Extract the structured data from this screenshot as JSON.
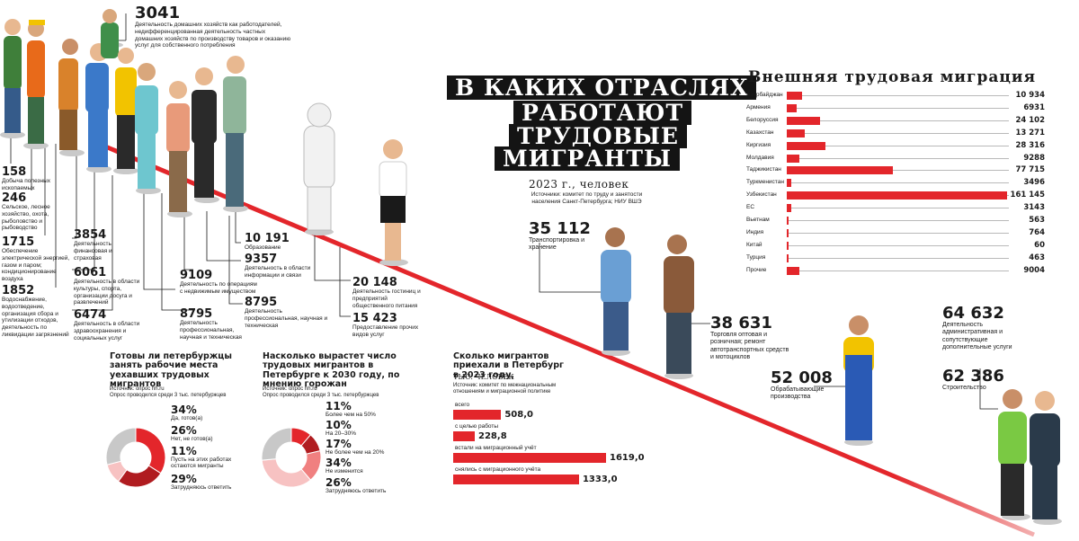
{
  "main": {
    "title_lines": [
      "В каких отраслях",
      "работают",
      "трудовые",
      "мигранты"
    ],
    "subtitle": "2023 г., человек",
    "source": "Источники: комитет по труду и занятости населения Санкт-Петербурга; НИУ ВШЭ"
  },
  "colors": {
    "accent": "#e3262b",
    "dark": "#141414",
    "donut_dark": "#e3262b",
    "donut_mid": "#f08080",
    "donut_light": "#f7c2c2",
    "donut_gray": "#c8c8c8"
  },
  "sectors": [
    {
      "value": "3041",
      "label": "Деятельность домашних хозяйств как работодателей, недифференцированная деятельность частных домашних хозяйств по производству товаров и оказанию услуг для собственного потребления"
    },
    {
      "value": "158",
      "label": "Добыча полезных ископаемых"
    },
    {
      "value": "246",
      "label": "Сельское, лесное хозяйство, охота, рыболовство и рыбоводство"
    },
    {
      "value": "1715",
      "label": "Обеспечение электрической энергией, газом и паром; кондиционирование воздуха"
    },
    {
      "value": "1852",
      "label": "Водоснабжение, водоотведение, организация сбора и утилизации отходов, деятельность по ликвидации загрязнений"
    },
    {
      "value": "3854",
      "label": "Деятельность финансовая и страховая"
    },
    {
      "value": "6061",
      "label": "Деятельность в области культуры, спорта, организации досуга и развлечений"
    },
    {
      "value": "6474",
      "label": "Деятельность в области здравоохранения и социальных услуг"
    },
    {
      "value": "10 191",
      "label": "Образование"
    },
    {
      "value": "9357",
      "label": "Деятельность в области информации и связи"
    },
    {
      "value": "9109",
      "label": "Деятельность по операциям с недвижимым имуществом"
    },
    {
      "value": "8795",
      "label": "Деятельность профессиональная, научная и техническая"
    },
    {
      "value": "8795",
      "label": "Деятельность профессиональная, научная и техническая"
    },
    {
      "value": "20 148",
      "label": "Деятельность гостиниц и предприятий общественного питания"
    },
    {
      "value": "15 423",
      "label": "Предоставление прочих видов услуг"
    },
    {
      "value": "35 112",
      "label": "Транспортировка и хранение"
    },
    {
      "value": "38 631",
      "label": "Торговля оптовая и розничная; ремонт автотранспортных средств и мотоциклов"
    },
    {
      "value": "52 008",
      "label": "Обрабатывающие производства"
    },
    {
      "value": "64 632",
      "label": "Деятельность административная и сопутствующие дополнительные услуги"
    },
    {
      "value": "62 386",
      "label": "Строительство"
    }
  ],
  "migration": {
    "title": "Внешняя трудовая миграция",
    "rows": [
      {
        "country": "Азербайджан",
        "value": "10 934",
        "num": 10934
      },
      {
        "country": "Армения",
        "value": "6931",
        "num": 6931
      },
      {
        "country": "Белоруссия",
        "value": "24 102",
        "num": 24102
      },
      {
        "country": "Казахстан",
        "value": "13 271",
        "num": 13271
      },
      {
        "country": "Киргизия",
        "value": "28 316",
        "num": 28316
      },
      {
        "country": "Молдавия",
        "value": "9288",
        "num": 9288
      },
      {
        "country": "Таджикистан",
        "value": "77 715",
        "num": 77715
      },
      {
        "country": "Туркменистан",
        "value": "3496",
        "num": 3496
      },
      {
        "country": "Узбекистан",
        "value": "161 145",
        "num": 161145
      },
      {
        "country": "ЕС",
        "value": "3143",
        "num": 3143
      },
      {
        "country": "Вьетнам",
        "value": "563",
        "num": 563
      },
      {
        "country": "Индия",
        "value": "764",
        "num": 764
      },
      {
        "country": "Китай",
        "value": "60",
        "num": 60
      },
      {
        "country": "Турция",
        "value": "463",
        "num": 463
      },
      {
        "country": "Прочие",
        "value": "9004",
        "num": 9004
      }
    ]
  },
  "poll1": {
    "title": "Готовы ли петербуржцы занять рабочие места уехавших трудовых мигрантов",
    "source1": "Источник: опрос hh.ru",
    "source2": "Опрос проводился среди 3 тыс. петербуржцев",
    "items": [
      {
        "pct": "34%",
        "label": "Да, готов(а)",
        "num": 34
      },
      {
        "pct": "26%",
        "label": "Нет, не готов(а)",
        "num": 26
      },
      {
        "pct": "11%",
        "label": "Пусть на этих работах остаются мигранты",
        "num": 11
      },
      {
        "pct": "29%",
        "label": "Затрудняюсь ответить",
        "num": 29
      }
    ]
  },
  "poll2": {
    "title": "Насколько вырастет число трудовых мигрантов в Петербурге к 2030 году, по мнению горожан",
    "source1": "Источник: опрос hh.ru",
    "source2": "Опрос проводился среди 3 тыс. петербуржцев",
    "items": [
      {
        "pct": "11%",
        "label": "Более чем на 50%",
        "num": 11
      },
      {
        "pct": "10%",
        "label": "На 20–30%",
        "num": 10
      },
      {
        "pct": "17%",
        "label": "Не более чем на 20%",
        "num": 17
      },
      {
        "pct": "34%",
        "label": "Не изменится",
        "num": 34
      },
      {
        "pct": "26%",
        "label": "Затрудняюсь ответить",
        "num": 26
      }
    ]
  },
  "arrivals": {
    "title": "Сколько мигрантов приехали в Петербург в 2023 году,",
    "unit": "тыс. человек",
    "source": "Источник: комитет по межнациональным отношениям и миграционной политике",
    "rows": [
      {
        "label": "всего",
        "value": "508,0",
        "num": 508.0
      },
      {
        "label": "с целью работы",
        "value": "228,8",
        "num": 228.8
      },
      {
        "label": "встали на миграционный учёт",
        "value": "1619,0",
        "num": 1619.0
      },
      {
        "label": "снялись с миграционного учёта",
        "value": "1333,0",
        "num": 1333.0
      }
    ]
  }
}
